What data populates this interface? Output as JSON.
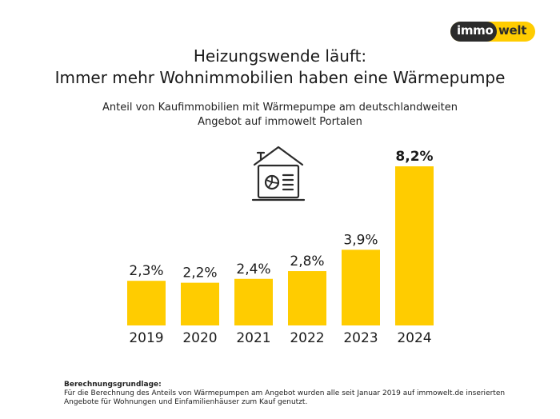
{
  "logo": {
    "part1": "immo",
    "part2": "welt"
  },
  "title_line1": "Heizungswende läuft:",
  "title_line2": "Immer mehr Wohnimmobilien haben eine Wärmepumpe",
  "subtitle_line1": "Anteil von Kaufimmobilien mit Wärmepumpe am deutschlandweiten",
  "subtitle_line2": "Angebot auf immowelt Portalen",
  "icon": "house-heat-pump-icon",
  "colors": {
    "bar": "#ffcc00",
    "accent_dark": "#2b2b2b",
    "text": "#1a1a1a"
  },
  "chart_data": {
    "type": "bar",
    "categories": [
      "2019",
      "2020",
      "2021",
      "2022",
      "2023",
      "2024"
    ],
    "values": [
      2.3,
      2.2,
      2.4,
      2.8,
      3.9,
      8.2
    ],
    "value_labels": [
      "2,3%",
      "2,2%",
      "2,4%",
      "2,8%",
      "3,9%",
      "8,2%"
    ],
    "highlight_index": 5,
    "ylim": [
      0,
      8.2
    ],
    "grid": false,
    "legend": "none"
  },
  "footer": {
    "heading": "Berechnungsgrundlage:",
    "text": "Für die Berechnung des Anteils von Wärmepumpen am Angebot wurden alle seit Januar 2019 auf immowelt.de inserierten Angebote für Wohnungen und Einfamilienhäuser zum Kauf genutzt."
  }
}
